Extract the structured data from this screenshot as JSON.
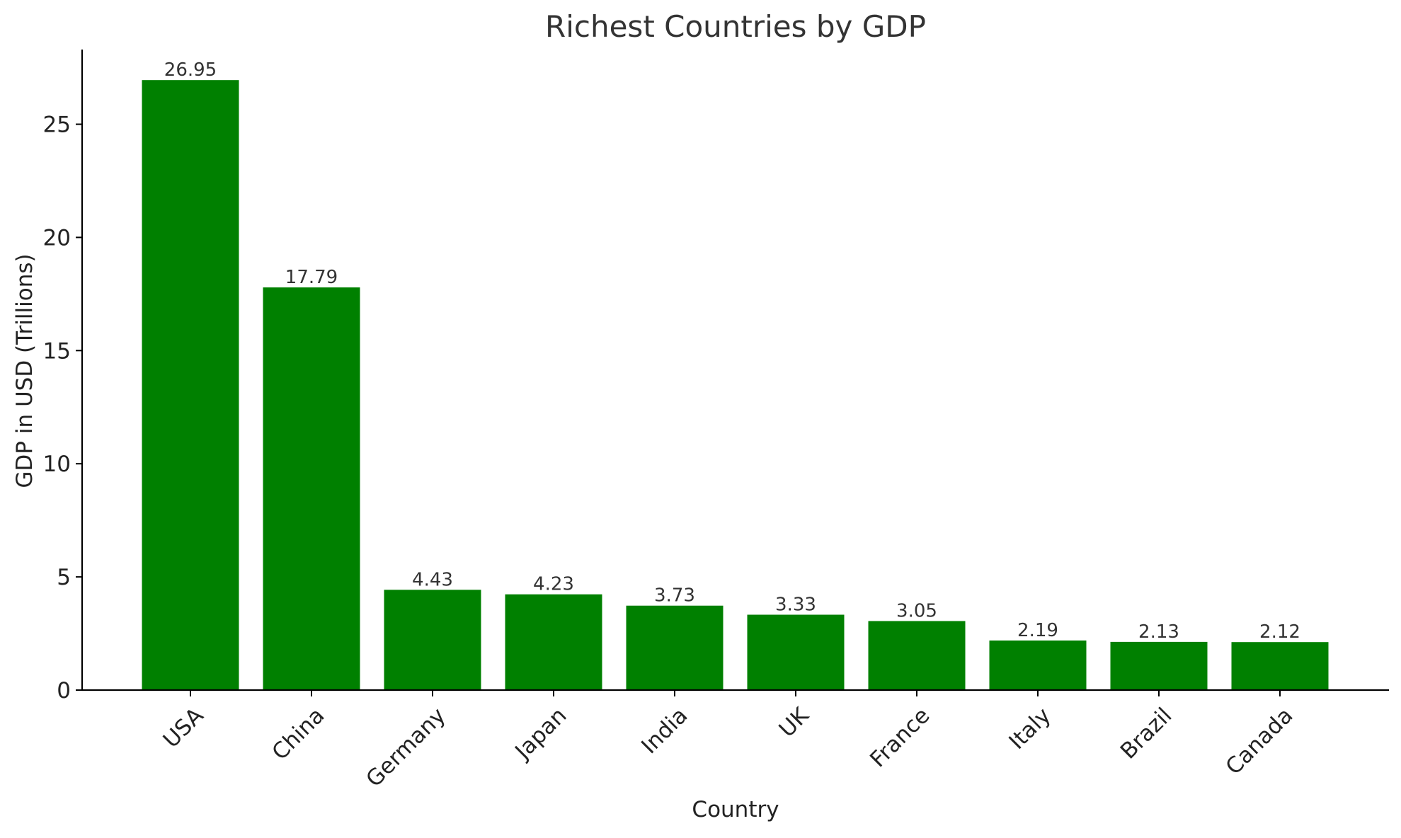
{
  "chart_data": {
    "type": "bar",
    "title": "Richest Countries by GDP",
    "xlabel": "Country",
    "ylabel": "GDP in USD (Trillions)",
    "categories": [
      "USA",
      "China",
      "Germany",
      "Japan",
      "India",
      "UK",
      "France",
      "Italy",
      "Brazil",
      "Canada"
    ],
    "values": [
      26.95,
      17.79,
      4.43,
      4.23,
      3.73,
      3.33,
      3.05,
      2.19,
      2.13,
      2.12
    ],
    "value_labels": [
      "26.95",
      "17.79",
      "4.43",
      "4.23",
      "3.73",
      "3.33",
      "3.05",
      "2.19",
      "2.13",
      "2.12"
    ],
    "yticks": [
      0,
      5,
      10,
      15,
      20,
      25
    ],
    "ytick_labels": [
      "0",
      "5",
      "10",
      "15",
      "20",
      "25"
    ],
    "ylim": [
      0,
      28.3
    ],
    "grid": false,
    "bar_color": "#008000"
  }
}
